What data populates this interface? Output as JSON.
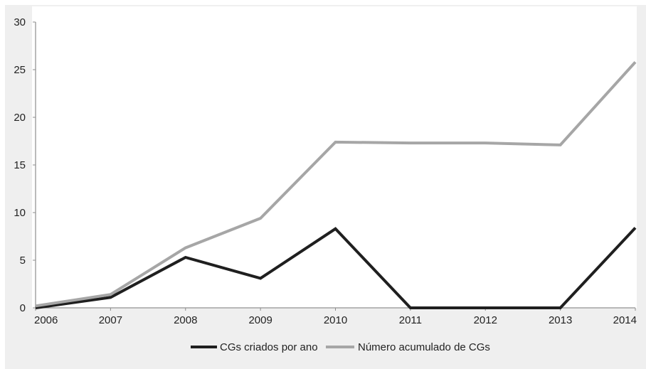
{
  "chart_data": {
    "type": "line",
    "title": "",
    "xlabel": "",
    "ylabel": "",
    "x": [
      "2006",
      "2007",
      "2008",
      "2009",
      "2010",
      "2011",
      "2012",
      "2013",
      "2014"
    ],
    "ylim": [
      0,
      30
    ],
    "yticks": [
      "0",
      "5",
      "10",
      "15",
      "20",
      "25",
      "30"
    ],
    "grid": false,
    "legend_placement": "bottom-center",
    "series": [
      {
        "name": "CGs criados por ano",
        "color": "#1f1f1f",
        "values": [
          0,
          1.1,
          5.3,
          3.1,
          8.3,
          0,
          0,
          0,
          8.4
        ]
      },
      {
        "name": "Número acumulado de CGs",
        "color": "#a6a6a6",
        "values": [
          0.2,
          1.4,
          6.3,
          9.4,
          17.4,
          17.3,
          17.3,
          17.1,
          25.8
        ]
      }
    ]
  }
}
